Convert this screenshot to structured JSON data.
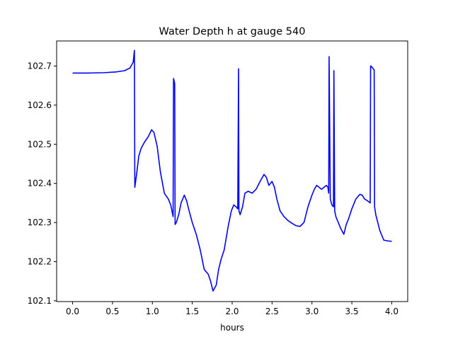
{
  "chart_data": {
    "type": "line",
    "title": "Water Depth h at gauge 540",
    "xlabel": "hours",
    "ylabel": "",
    "xlim": [
      -0.2,
      4.2
    ],
    "ylim": [
      102.098,
      102.764
    ],
    "xticks": [
      0.0,
      0.5,
      1.0,
      1.5,
      2.0,
      2.5,
      3.0,
      3.5,
      4.0
    ],
    "xtick_labels": [
      "0.0",
      "0.5",
      "1.0",
      "1.5",
      "2.0",
      "2.5",
      "3.0",
      "3.5",
      "4.0"
    ],
    "yticks": [
      102.1,
      102.2,
      102.3,
      102.4,
      102.5,
      102.6,
      102.7
    ],
    "ytick_labels": [
      "102.1",
      "102.2",
      "102.3",
      "102.4",
      "102.5",
      "102.6",
      "102.7"
    ],
    "grid": false,
    "series": [
      {
        "name": "",
        "color": "#0000ff",
        "x": [
          0.0,
          0.2,
          0.4,
          0.55,
          0.65,
          0.72,
          0.76,
          0.775,
          0.78,
          0.8,
          0.83,
          0.86,
          0.9,
          0.95,
          0.99,
          1.02,
          1.06,
          1.1,
          1.15,
          1.2,
          1.23,
          1.26,
          1.265,
          1.28,
          1.285,
          1.3,
          1.33,
          1.36,
          1.4,
          1.43,
          1.46,
          1.5,
          1.55,
          1.6,
          1.65,
          1.7,
          1.73,
          1.76,
          1.8,
          1.83,
          1.86,
          1.9,
          1.95,
          1.99,
          2.02,
          2.05,
          2.07,
          2.08,
          2.085,
          2.1,
          2.13,
          2.16,
          2.2,
          2.25,
          2.3,
          2.35,
          2.4,
          2.43,
          2.46,
          2.5,
          2.53,
          2.56,
          2.6,
          2.65,
          2.7,
          2.75,
          2.8,
          2.85,
          2.9,
          2.95,
          3.0,
          3.03,
          3.06,
          3.09,
          3.12,
          3.15,
          3.18,
          3.2,
          3.21,
          3.215,
          3.23,
          3.25,
          3.27,
          3.275,
          3.285,
          3.3,
          3.33,
          3.36,
          3.4,
          3.43,
          3.46,
          3.5,
          3.55,
          3.6,
          3.63,
          3.66,
          3.7,
          3.73,
          3.735,
          3.74,
          3.76,
          3.78,
          3.785,
          3.8,
          3.85,
          3.9,
          3.95,
          4.0
        ],
        "y": [
          102.682,
          102.682,
          102.683,
          102.685,
          102.688,
          102.695,
          102.71,
          102.74,
          102.39,
          102.42,
          102.47,
          102.49,
          102.505,
          102.52,
          102.537,
          102.53,
          102.495,
          102.43,
          102.375,
          102.36,
          102.345,
          102.315,
          102.668,
          102.655,
          102.295,
          102.3,
          102.32,
          102.35,
          102.37,
          102.355,
          102.33,
          102.3,
          102.27,
          102.23,
          102.18,
          102.168,
          102.15,
          102.125,
          102.14,
          102.18,
          102.205,
          102.23,
          102.29,
          102.33,
          102.345,
          102.34,
          102.335,
          102.693,
          102.33,
          102.32,
          102.34,
          102.375,
          102.38,
          102.375,
          102.385,
          102.405,
          102.423,
          102.415,
          102.395,
          102.405,
          102.39,
          102.36,
          102.33,
          102.315,
          102.305,
          102.298,
          102.292,
          102.29,
          102.3,
          102.34,
          102.37,
          102.385,
          102.395,
          102.39,
          102.385,
          102.39,
          102.395,
          102.39,
          102.375,
          102.724,
          102.36,
          102.345,
          102.34,
          102.688,
          102.33,
          102.315,
          102.3,
          102.285,
          102.27,
          102.295,
          102.31,
          102.335,
          102.36,
          102.372,
          102.37,
          102.36,
          102.355,
          102.35,
          102.7,
          102.7,
          102.695,
          102.69,
          102.34,
          102.32,
          102.28,
          102.255,
          102.253,
          102.252
        ]
      }
    ]
  }
}
